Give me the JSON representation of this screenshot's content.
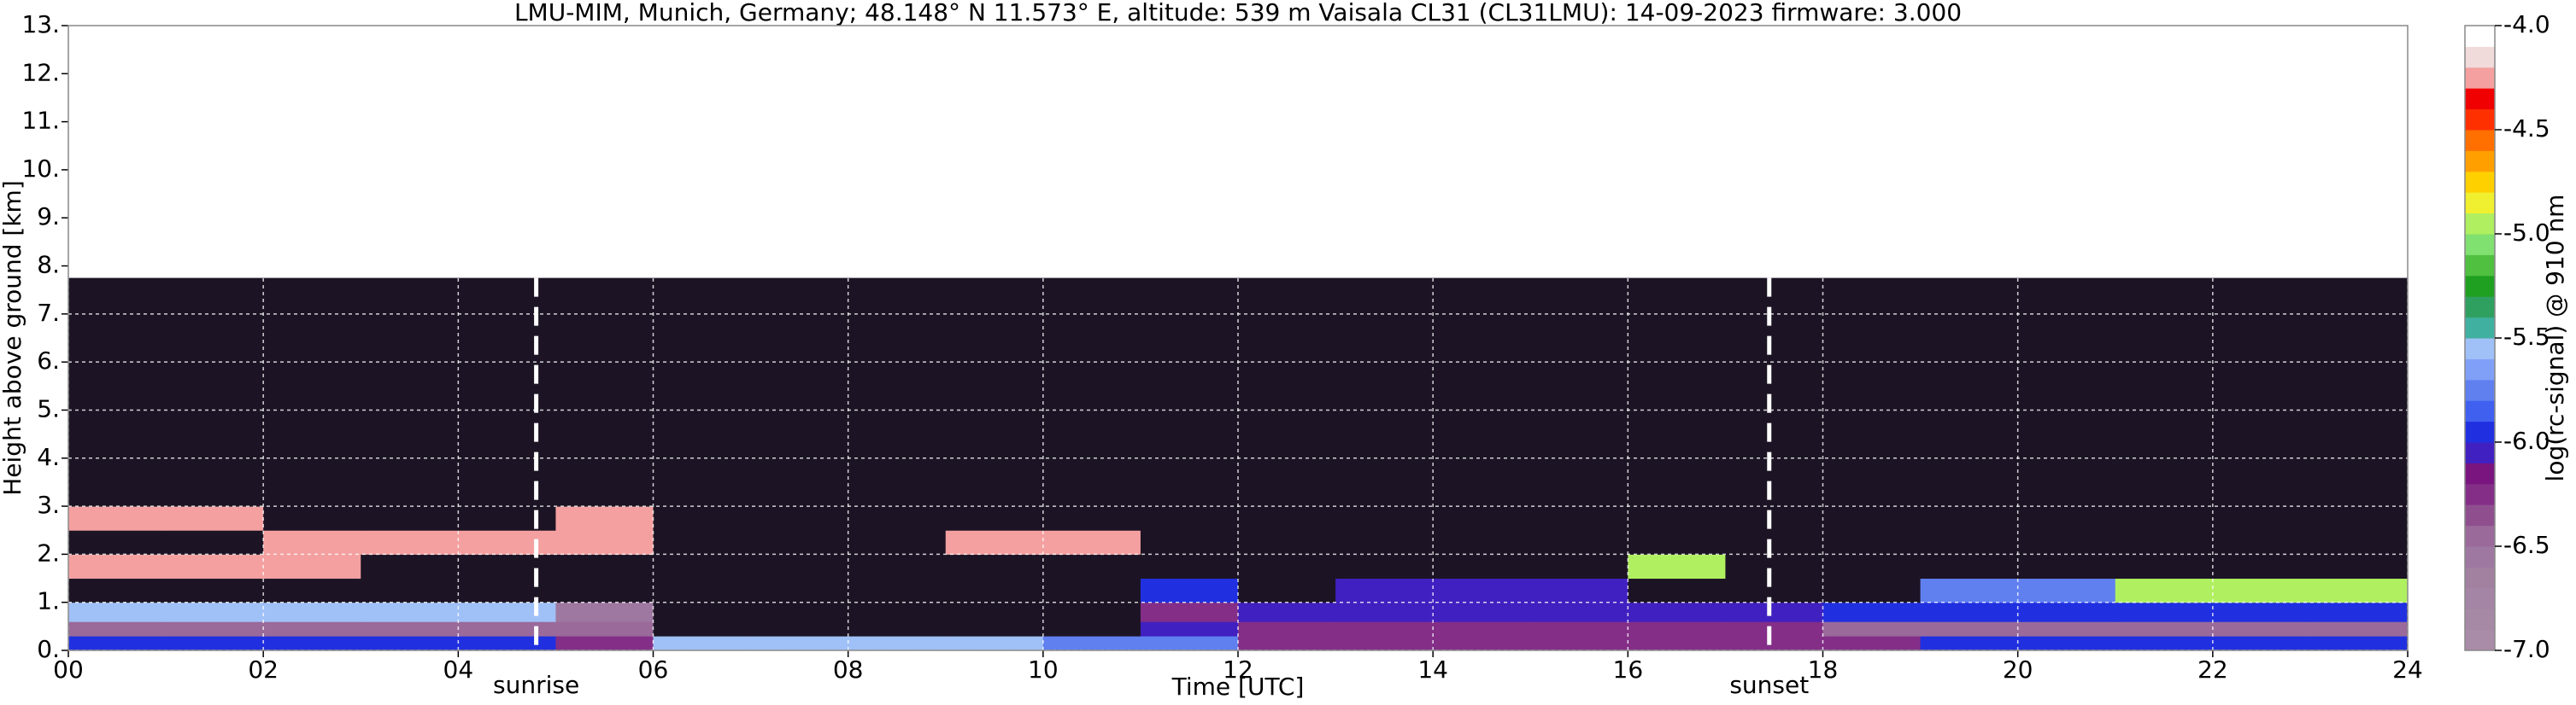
{
  "chart_data": {
    "type": "heatmap",
    "title": "LMU-MIM, Munich, Germany; 48.148° N 11.573° E, altitude: 539 m    Vaisala CL31 (CL31LMU): 14-09-2023    firmware: 3.000",
    "xlabel": "Time [UTC]",
    "ylabel": "Height above ground [km]",
    "xlim": [
      0,
      24
    ],
    "ylim": [
      0,
      13
    ],
    "xticks": [
      {
        "value": 0,
        "label": "00"
      },
      {
        "value": 2,
        "label": "02"
      },
      {
        "value": 4,
        "label": "04"
      },
      {
        "value": 6,
        "label": "06"
      },
      {
        "value": 8,
        "label": "08"
      },
      10,
      12,
      14,
      16,
      18,
      20,
      22,
      24
    ],
    "yticks": [
      {
        "value": 0,
        "label": "0."
      },
      {
        "value": 1,
        "label": "1."
      },
      {
        "value": 2,
        "label": "2."
      },
      {
        "value": 3,
        "label": "3."
      },
      {
        "value": 4,
        "label": "4."
      },
      {
        "value": 5,
        "label": "5."
      },
      {
        "value": 6,
        "label": "6."
      },
      {
        "value": 7,
        "label": "7."
      },
      {
        "value": 8,
        "label": "8."
      },
      {
        "value": 9,
        "label": "9."
      },
      {
        "value": 10,
        "label": "10."
      },
      {
        "value": 11,
        "label": "11."
      },
      {
        "value": 12,
        "label": "12."
      },
      {
        "value": 13,
        "label": "13."
      }
    ],
    "grid": true,
    "x_edges": [
      0,
      1,
      2,
      3,
      4,
      5,
      6,
      7,
      8,
      9,
      10,
      11,
      12,
      13,
      14,
      15,
      16,
      17,
      18,
      19,
      20,
      21,
      22,
      23,
      24
    ],
    "y_edges": [
      0,
      0.3,
      0.6,
      1.0,
      1.5,
      2.0,
      2.5,
      3.0,
      7.75
    ],
    "z": [
      [
        -6,
        -6,
        -6,
        -6,
        -6,
        -6.3,
        -5.6,
        -5.6,
        -5.6,
        -5.6,
        -5.8,
        -5.8,
        -6.2,
        -6.2,
        -6.2,
        -6.2,
        -6.2,
        -6.2,
        -6.2,
        -6,
        -6,
        -6,
        -6,
        -6
      ],
      [
        -6.4,
        -6.4,
        -6.4,
        -6.4,
        -6.4,
        -6.4,
        -7.5,
        -7.5,
        -7.5,
        -7.5,
        -7.5,
        -6.1,
        -6.3,
        -6.3,
        -6.3,
        -6.3,
        -6.3,
        -6.3,
        -6.4,
        -6.4,
        -6.4,
        -6.4,
        -6.4,
        -6.4
      ],
      [
        -5.6,
        -5.6,
        -5.6,
        -5.6,
        -5.6,
        -6.6,
        -7.5,
        -7.5,
        -7.5,
        -7.5,
        -7.5,
        -6.2,
        -6.1,
        -6.1,
        -6.1,
        -6.1,
        -6.1,
        -6.1,
        -6,
        -6,
        -5.9,
        -5.9,
        -5.9,
        -5.9
      ],
      [
        -7.5,
        -7.5,
        -7.5,
        -7.5,
        -7.5,
        -7.5,
        -7.5,
        -7.5,
        -7.5,
        -7.5,
        -7.5,
        -6,
        -7.5,
        -6.1,
        -6.1,
        -6.1,
        -7.5,
        -7.5,
        -7.5,
        -5.8,
        -5.7,
        -4.9,
        -4.9,
        -4.9
      ],
      [
        -4.2,
        -4.2,
        -4.2,
        -7.5,
        -7.5,
        -7.5,
        -7.5,
        -7.5,
        -7.5,
        -7.5,
        -7.5,
        -7.5,
        -7.5,
        -7.5,
        -7.5,
        -7.5,
        -5,
        -7.5,
        -7.5,
        -7.5,
        -7.5,
        -7.5,
        -7.5,
        -7.5
      ],
      [
        -7.5,
        -7.5,
        -4.2,
        -4.2,
        -4.2,
        -4.2,
        -7.5,
        -7.5,
        -7.5,
        -4.2,
        -4.2,
        -7.5,
        -7.5,
        -7.5,
        -7.5,
        -7.5,
        -7.5,
        -7.5,
        -7.5,
        -7.5,
        -7.5,
        -7.5,
        -7.5,
        -7.5
      ],
      [
        -4.2,
        -4.2,
        -7.5,
        -7.5,
        -7.5,
        -4.2,
        -7.5,
        -7.5,
        -7.5,
        -7.5,
        -7.5,
        -7.5,
        -7.5,
        -7.5,
        -7.5,
        -7.5,
        -7.5,
        -7.5,
        -7.5,
        -7.5,
        -7.5,
        -7.5,
        -7.5,
        -7.5
      ],
      [
        -7.5,
        -7.5,
        -7.5,
        -7.5,
        -7.5,
        -7.5,
        -7.5,
        -7.5,
        -7.5,
        -7.5,
        -7.5,
        -7.5,
        -7.5,
        -7.5,
        -7.5,
        -7.5,
        -7.5,
        -7.5,
        -7.5,
        -7.5,
        -7.5,
        -7.5,
        -7.5,
        -7.5
      ]
    ],
    "under_color": "#1c1424",
    "annotations": [
      {
        "text": "sunrise",
        "x": 4.8
      },
      {
        "text": "sunset",
        "x": 17.45
      }
    ],
    "colorbar": {
      "label": "log(rc-signal) @ 910 nm",
      "lim": [
        -7,
        -4
      ],
      "ticks": [
        {
          "value": -7,
          "label": "-7.0"
        },
        -6.5,
        {
          "value": -6,
          "label": "-6.0"
        },
        -5.5,
        {
          "value": -5,
          "label": "-5.0"
        },
        -4.5,
        {
          "value": -4,
          "label": "-4.0"
        }
      ],
      "colors": [
        "#a98ca8",
        "#a689a5",
        "#a585a5",
        "#a280a0",
        "#9e78a0",
        "#9a6a9a",
        "#8f4f8f",
        "#842e88",
        "#7a1580",
        "#4020c0",
        "#2030e0",
        "#4060f0",
        "#6080f0",
        "#80a0f8",
        "#a0c0f8",
        "#40b0a0",
        "#30a060",
        "#20a020",
        "#50c040",
        "#80e070",
        "#b0f060",
        "#f0f030",
        "#ffd000",
        "#ffa000",
        "#ff7000",
        "#ff3000",
        "#f00000",
        "#f4a0a0",
        "#f0dada",
        "#ffffff"
      ]
    }
  }
}
